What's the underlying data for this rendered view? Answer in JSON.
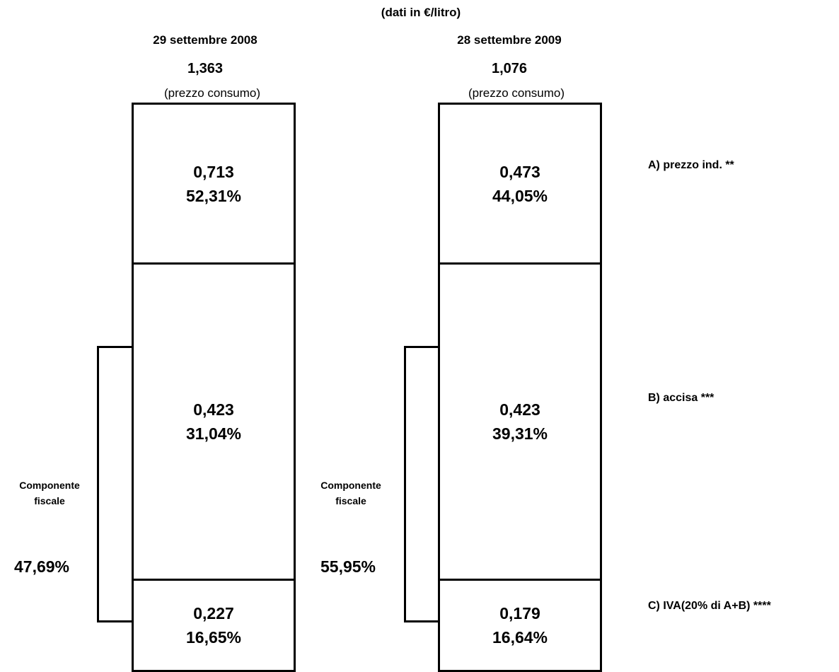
{
  "unit_note": "(dati in €/litro)",
  "chart_data": {
    "type": "table",
    "columns": [
      {
        "date": "29 settembre 2008",
        "total": "1,363",
        "total_note": "(prezzo consumo)",
        "segments": [
          {
            "value": "0,713",
            "percent": "52,31%"
          },
          {
            "value": "0,423",
            "percent": "31,04%"
          },
          {
            "value": "0,227",
            "percent": "16,65%"
          }
        ],
        "fiscal_label_1": "Componente",
        "fiscal_label_2": "fiscale",
        "fiscal_percent": "47,69%"
      },
      {
        "date": "28 settembre 2009",
        "total": "1,076",
        "total_note": "(prezzo consumo)",
        "segments": [
          {
            "value": "0,473",
            "percent": "44,05%"
          },
          {
            "value": "0,423",
            "percent": "39,31%"
          },
          {
            "value": "0,179",
            "percent": "16,64%"
          }
        ],
        "fiscal_label_1": "Componente",
        "fiscal_label_2": "fiscale",
        "fiscal_percent": "55,95%"
      }
    ],
    "components": [
      "A) prezzo ind. **",
      "B) accisa ***",
      "C) IVA(20% di A+B) ****"
    ]
  }
}
